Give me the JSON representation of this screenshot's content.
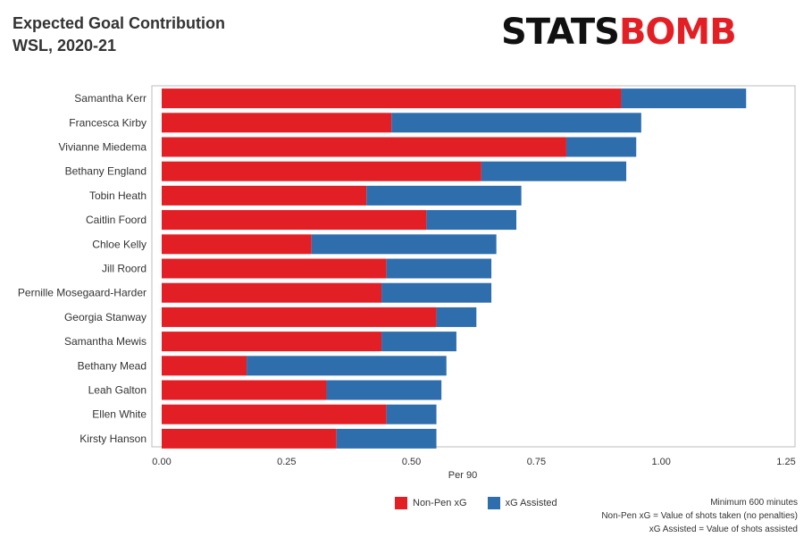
{
  "header": {
    "title_line1": "Expected Goal Contribution",
    "title_line2": "WSL, 2020-21",
    "brand_part1": "STATS",
    "brand_part2": "BOMB"
  },
  "colors": {
    "non_pen_xg": "#e31f26",
    "xg_assisted": "#2f6ead",
    "brand_red": "#e31f26"
  },
  "legend": {
    "item1_label": "Non-Pen xG",
    "item2_label": "xG Assisted"
  },
  "notes": {
    "line1": "Minimum 600 minutes",
    "line2": "Non-Pen xG = Value of shots taken (no penalties)",
    "line3": "xG Assisted = Value of shots assisted"
  },
  "chart_data": {
    "type": "bar",
    "orientation": "horizontal",
    "stacked": true,
    "categories": [
      "Samantha Kerr",
      "Francesca Kirby",
      "Vivianne Miedema",
      "Bethany England",
      "Tobin Heath",
      "Caitlin Foord",
      "Chloe Kelly",
      "Jill Roord",
      "Pernille Mosegaard-Harder",
      "Georgia Stanway",
      "Samantha Mewis",
      "Bethany Mead",
      "Leah Galton",
      "Ellen White",
      "Kirsty Hanson"
    ],
    "series": [
      {
        "name": "Non-Pen xG",
        "values": [
          0.92,
          0.46,
          0.81,
          0.64,
          0.41,
          0.53,
          0.3,
          0.45,
          0.44,
          0.55,
          0.44,
          0.17,
          0.33,
          0.45,
          0.35
        ]
      },
      {
        "name": "xG Assisted",
        "values": [
          0.25,
          0.5,
          0.14,
          0.29,
          0.31,
          0.18,
          0.37,
          0.21,
          0.22,
          0.08,
          0.15,
          0.4,
          0.23,
          0.1,
          0.2
        ]
      }
    ],
    "xlabel": "Per 90",
    "xlim": [
      0,
      1.27
    ],
    "xticks": [
      0,
      0.25,
      0.5,
      0.75,
      1.0,
      1.25
    ],
    "xtick_labels": [
      "0.00",
      "0.25",
      "0.50",
      "0.75",
      "1.00",
      "1.25"
    ],
    "grid": false,
    "legend_position": "bottom"
  }
}
